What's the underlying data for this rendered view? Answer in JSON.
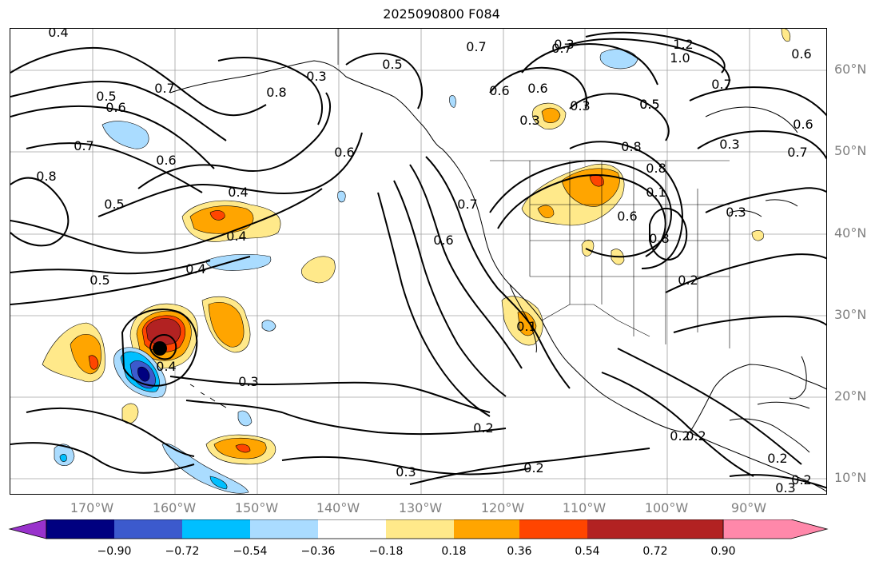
{
  "title": "2025090800 F084",
  "axes": {
    "lon_labels": [
      "170°W",
      "160°W",
      "150°W",
      "140°W",
      "130°W",
      "120°W",
      "110°W",
      "100°W",
      "90°W"
    ],
    "lat_labels": [
      "60°N",
      "50°N",
      "40°N",
      "30°N",
      "20°N",
      "10°N"
    ]
  },
  "colorbar": {
    "tick_labels": [
      "−0.90",
      "−0.72",
      "−0.54",
      "−0.36",
      "−0.18",
      "0.18",
      "0.36",
      "0.54",
      "0.72",
      "0.90"
    ],
    "colors": [
      "#9932cc",
      "#000080",
      "#3c5acd",
      "#00bfff",
      "#aadcff",
      "#ffffff",
      "#ffe98a",
      "#ffa500",
      "#ff4500",
      "#b22222",
      "#ff88aa"
    ]
  },
  "contour_labels": [
    "0.4",
    "0.5",
    "0.6",
    "0.7",
    "0.8",
    "0.6",
    "0.5",
    "0.4",
    "0.4",
    "0.5",
    "0.6",
    "0.7",
    "0.8",
    "0.4",
    "0.3",
    "0.2",
    "0.3",
    "0.2",
    "0.2",
    "0.3",
    "0.6",
    "0.7",
    "0.5",
    "0.7",
    "0.6",
    "0.8",
    "0.8",
    "0.6",
    "0.5",
    "0.3",
    "0.8",
    "0.6",
    "0.7",
    "0.3",
    "0.1",
    "1.2",
    "1.0",
    "0.6",
    "0.7",
    "0.5",
    "0.7",
    "0.6",
    "0.3",
    "0.3",
    "0.2",
    "0.2",
    "0.2",
    "0.1",
    "0.2",
    "0.4",
    "0.3",
    "0.3"
  ],
  "storm_marker": "tropical-cyclone-center"
}
